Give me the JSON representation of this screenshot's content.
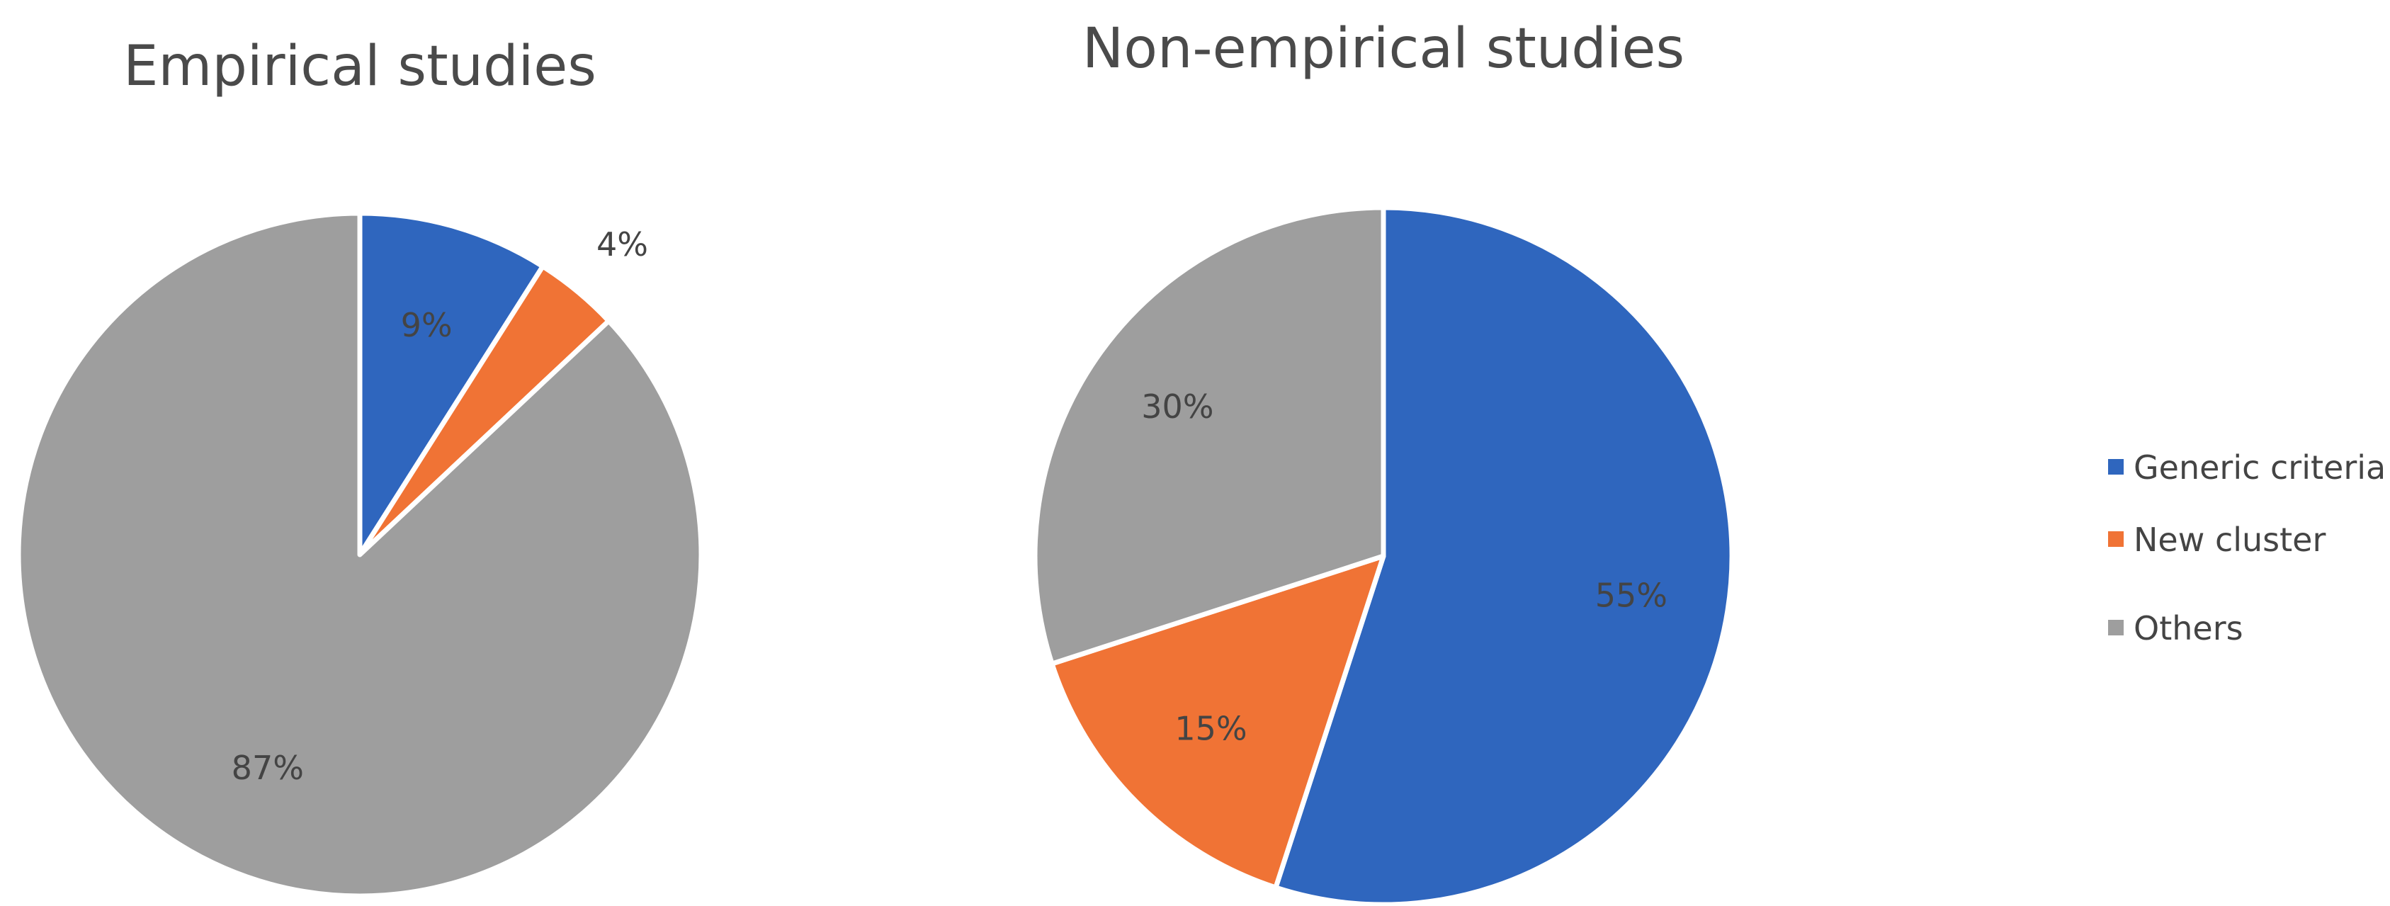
{
  "chart_data": [
    {
      "type": "pie",
      "title": "Empirical studies",
      "categories": [
        "Generic criteria",
        "New cluster",
        "Others"
      ],
      "values": [
        9,
        4,
        87
      ],
      "labels": [
        "9%",
        "4%",
        "87%"
      ],
      "start_angle_deg": 0,
      "direction": "clockwise"
    },
    {
      "type": "pie",
      "title": "Non-empirical studies",
      "categories": [
        "Generic criteria",
        "New cluster",
        "Others"
      ],
      "values": [
        55,
        15,
        30
      ],
      "labels": [
        "55%",
        "15%",
        "30%"
      ],
      "start_angle_deg": 0,
      "direction": "clockwise"
    }
  ],
  "legend": {
    "placement": "right",
    "items": [
      {
        "label": "Generic criteria",
        "color": "#2F66BE"
      },
      {
        "label": "New cluster",
        "color": "#F07335"
      },
      {
        "label": "Others",
        "color": "#9E9E9E"
      }
    ]
  },
  "colors": {
    "Generic criteria": "#2F66BE",
    "New cluster": "#F07335",
    "Others": "#9E9E9E"
  }
}
